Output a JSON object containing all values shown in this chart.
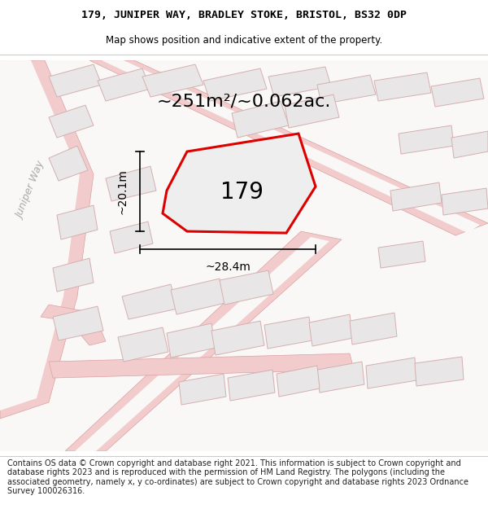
{
  "title_line1": "179, JUNIPER WAY, BRADLEY STOKE, BRISTOL, BS32 0DP",
  "title_line2": "Map shows position and indicative extent of the property.",
  "area_text": "~251m²/~0.062ac.",
  "label_179": "179",
  "dim_width": "~28.4m",
  "dim_height": "~20.1m",
  "street_label": "Juniper Way",
  "footer_text": "Contains OS data © Crown copyright and database right 2021. This information is subject to Crown copyright and database rights 2023 and is reproduced with the permission of HM Land Registry. The polygons (including the associated geometry, namely x, y co-ordinates) are subject to Crown copyright and database rights 2023 Ordnance Survey 100026316.",
  "map_bg": "#f9f8f7",
  "plot_fill": "#ebebeb",
  "plot_stroke": "#dd0000",
  "road_fill": "#f5d0d0",
  "road_edge": "#e8b0b0",
  "building_fill": "#e8e6e6",
  "building_edge": "#d4b0b0",
  "title_fontsize": 9.5,
  "subtitle_fontsize": 8.5,
  "area_fontsize": 16,
  "label_fontsize": 20,
  "dim_fontsize": 10,
  "street_fontsize": 9,
  "footer_fontsize": 7.0
}
